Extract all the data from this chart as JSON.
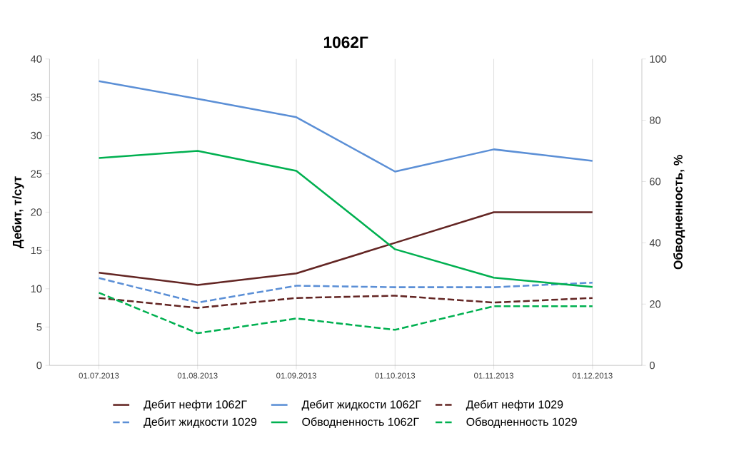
{
  "chart_data": {
    "type": "line",
    "title": "1062Г",
    "ylabel": "Дебит, т/сут",
    "y2label": "Обводненность, %",
    "categories": [
      "01.07.2013",
      "01.08.2013",
      "01.09.2013",
      "01.10.2013",
      "01.11.2013",
      "01.12.2013"
    ],
    "series": [
      {
        "name": "Дебит нефти 1062Г",
        "color": "#632523",
        "line_style": "solid",
        "values": [
          12.1,
          10.5,
          12.0,
          16.0,
          20.0,
          20.0
        ]
      },
      {
        "name": "Дебит жидкости 1062Г",
        "color": "#5b8fd6",
        "line_style": "solid",
        "values": [
          37.1,
          34.8,
          32.4,
          25.3,
          28.2,
          26.7
        ]
      },
      {
        "name": "Дебит нефти 1029",
        "color": "#632523",
        "line_style": "dashed",
        "values": [
          8.8,
          7.5,
          8.8,
          9.1,
          8.2,
          8.8
        ]
      },
      {
        "name": "Дебит жидкости 1029",
        "color": "#5b8fd6",
        "line_style": "dashed",
        "values": [
          11.4,
          8.2,
          10.4,
          10.2,
          10.2,
          10.8
        ]
      },
      {
        "name": "Обводненность 1062Г",
        "color": "#00b050",
        "line_style": "solid",
        "axis": "y2",
        "values": [
          67.7,
          70.0,
          63.5,
          37.9,
          28.6,
          25.6
        ]
      },
      {
        "name": "Обводненность 1029",
        "color": "#00b050",
        "line_style": "dashed",
        "axis": "y2",
        "values": [
          23.7,
          10.5,
          15.3,
          11.6,
          19.3,
          19.3
        ]
      }
    ],
    "ylim": [
      0,
      40
    ],
    "yticks": [
      0,
      5,
      10,
      15,
      20,
      25,
      30,
      35,
      40
    ],
    "y2lim": [
      0,
      100
    ],
    "y2ticks": [
      0,
      20,
      40,
      60,
      80,
      100
    ],
    "grid": "x",
    "legend": "bottom"
  }
}
